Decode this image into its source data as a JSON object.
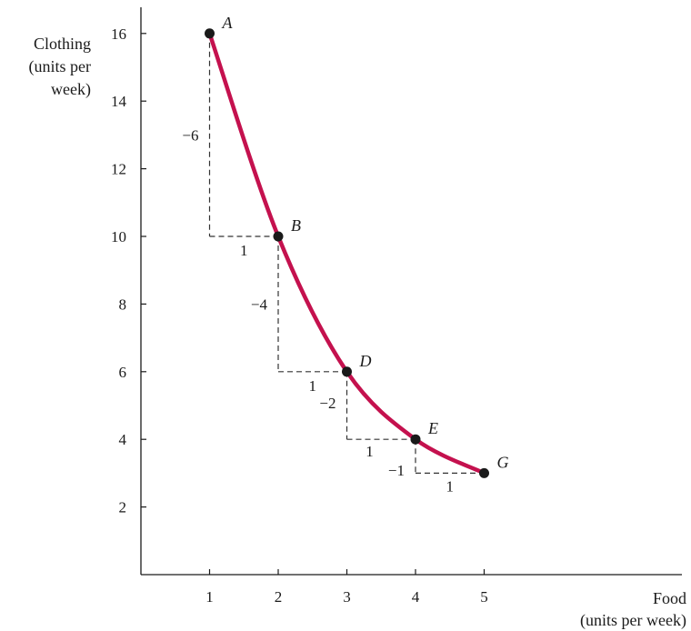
{
  "chart_data": {
    "type": "line",
    "title": "",
    "xlabel_lines": [
      "Food",
      "(units per week)"
    ],
    "ylabel_lines": [
      "Clothing",
      "(units per",
      "week)"
    ],
    "xlim": [
      0,
      6.6
    ],
    "ylim": [
      0,
      16.8
    ],
    "x_ticks": [
      1,
      2,
      3,
      4,
      5
    ],
    "y_ticks": [
      2,
      4,
      6,
      8,
      10,
      12,
      14,
      16
    ],
    "grid": false,
    "series": [
      {
        "color": "#c4114e",
        "points": [
          {
            "label": "A",
            "x": 1,
            "y": 16
          },
          {
            "label": "B",
            "x": 2,
            "y": 10
          },
          {
            "label": "D",
            "x": 3,
            "y": 6
          },
          {
            "label": "E",
            "x": 4,
            "y": 4
          },
          {
            "label": "G",
            "x": 5,
            "y": 3
          }
        ]
      }
    ],
    "annotations": [
      {
        "text": "−6"
      },
      {
        "text": "1"
      },
      {
        "text": "−4"
      },
      {
        "text": "1"
      },
      {
        "text": "−2"
      },
      {
        "text": "1"
      },
      {
        "text": "−1"
      },
      {
        "text": "1"
      }
    ]
  }
}
